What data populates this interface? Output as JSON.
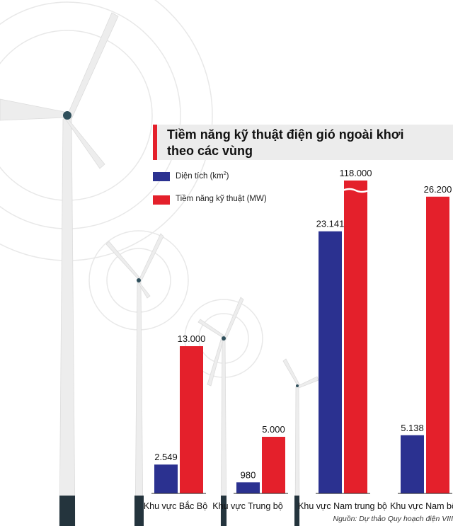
{
  "chart_data": {
    "type": "bar",
    "title": "Tiềm năng kỹ thuật điện gió ngoài khơi theo các vùng",
    "title_lines": [
      "Tiềm năng kỹ thuật điện gió ngoài khơi",
      "theo các vùng"
    ],
    "categories": [
      "Khu vực Bắc Bộ",
      "Khu vực Trung bộ",
      "Khu vực Nam trung bộ",
      "Khu vực Nam bộ"
    ],
    "series": [
      {
        "name": "Diện tích (km2)",
        "name_base": "Diện tích (km",
        "name_sup": "2",
        "name_end": ")",
        "values": [
          2549,
          980,
          23141,
          5138
        ],
        "labels": [
          "2.549",
          "980",
          "23.141",
          "5.138"
        ],
        "color": "#2b3190"
      },
      {
        "name": "Tiềm năng kỹ thuật (MW)",
        "values": [
          13000,
          5000,
          118000,
          26200
        ],
        "labels": [
          "13.000",
          "5.000",
          "118.000",
          "26.200"
        ],
        "color": "#e4202b",
        "broken_axis_values": [
          118000
        ]
      }
    ],
    "axis_break": true,
    "grid": false,
    "legend_position": "top-left"
  },
  "source": "Nguồn: Dự thảo Quy hoạch điện VIII",
  "colors": {
    "accent": "#e4202b",
    "navy": "#2b3190",
    "title_background": "#ececec"
  }
}
